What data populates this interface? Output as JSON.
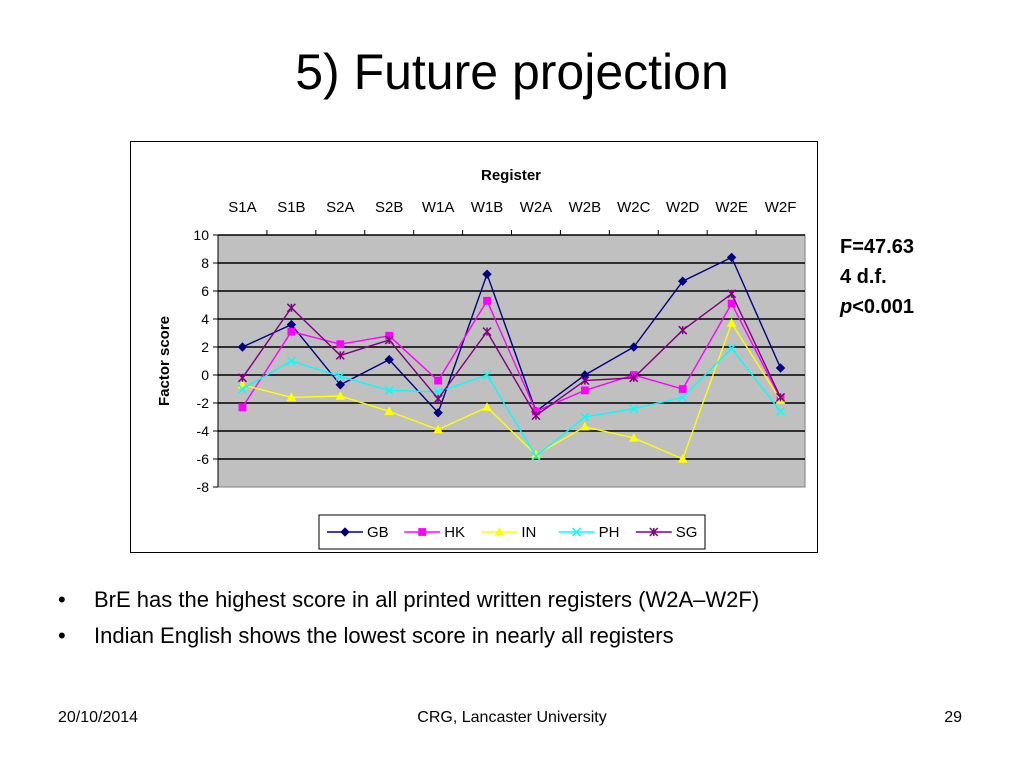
{
  "slide": {
    "title": "5) Future projection",
    "stats": {
      "f_value": "F=47.63",
      "df": "4 d.f.",
      "p_symbol": "p",
      "p_rest": "<0.001"
    },
    "bullets": [
      "BrE has the highest score in all printed written registers (W2A–W2F)",
      "Indian English shows the lowest score in nearly all registers"
    ],
    "footer": {
      "date": "20/10/2014",
      "organization": "CRG, Lancaster University",
      "page_number": "29"
    }
  },
  "chart_data": {
    "type": "line",
    "title": "Register",
    "xlabel": "",
    "ylabel": "Factor score",
    "categories": [
      "S1A",
      "S1B",
      "S2A",
      "S2B",
      "W1A",
      "W1B",
      "W2A",
      "W2B",
      "W2C",
      "W2D",
      "W2E",
      "W2F"
    ],
    "ylim": [
      -8,
      10
    ],
    "yticks": [
      10,
      8,
      6,
      4,
      2,
      0,
      -2,
      -4,
      -6,
      -8
    ],
    "grid": true,
    "legend_position": "bottom",
    "plot_background": "#c0c0c0",
    "series": [
      {
        "name": "GB",
        "color": "#000080",
        "marker": "diamond",
        "values": [
          2.0,
          3.6,
          -0.7,
          1.1,
          -2.7,
          7.2,
          -2.6,
          0.0,
          2.0,
          6.7,
          8.4,
          0.5
        ]
      },
      {
        "name": "HK",
        "color": "#ff00ff",
        "marker": "square",
        "values": [
          -2.3,
          3.1,
          2.2,
          2.8,
          -0.4,
          5.3,
          -2.6,
          -1.1,
          0.0,
          -1.0,
          5.1,
          -1.7
        ]
      },
      {
        "name": "IN",
        "color": "#ffff00",
        "marker": "triangle",
        "values": [
          -0.7,
          -1.6,
          -1.5,
          -2.6,
          -3.9,
          -2.3,
          -5.7,
          -3.7,
          -4.5,
          -6.0,
          3.7,
          -1.8
        ]
      },
      {
        "name": "PH",
        "color": "#00ffff",
        "marker": "x",
        "values": [
          -1.0,
          1.0,
          -0.1,
          -1.1,
          -1.2,
          0.0,
          -5.8,
          -3.0,
          -2.4,
          -1.6,
          1.9,
          -2.6
        ]
      },
      {
        "name": "SG",
        "color": "#800080",
        "marker": "star",
        "values": [
          -0.2,
          4.8,
          1.4,
          2.5,
          -1.7,
          3.1,
          -2.9,
          -0.4,
          -0.2,
          3.2,
          5.8,
          -1.6
        ]
      }
    ]
  }
}
